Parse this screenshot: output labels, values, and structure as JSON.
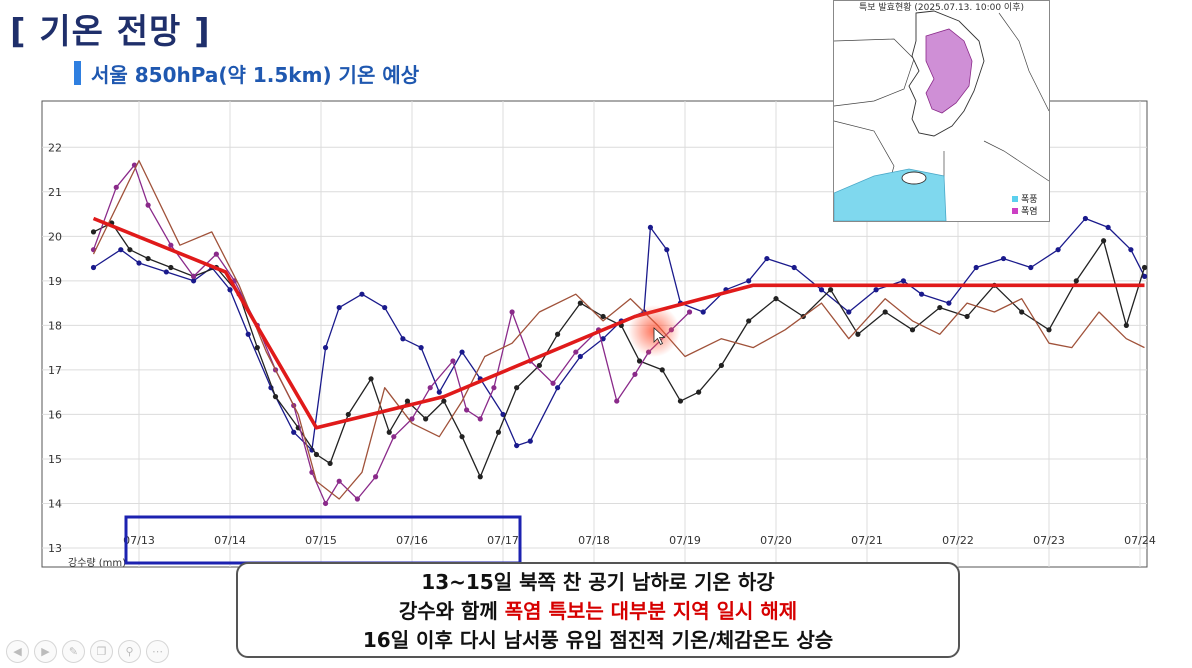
{
  "header": {
    "title": "[ 기온 전망 ]",
    "subtitle": "서울 850hPa(약 1.5km) 기온 예상"
  },
  "chart_data": {
    "type": "line",
    "xlabel": "",
    "ylabel": "",
    "ylim": [
      13,
      22.5
    ],
    "yticks": [
      13,
      14,
      15,
      16,
      17,
      18,
      19,
      20,
      21,
      22
    ],
    "x_range": [
      0,
      12
    ],
    "xtick_positions": [
      1,
      2,
      3,
      4,
      5,
      6,
      7,
      8,
      9,
      10,
      11,
      12
    ],
    "xtick_labels": [
      "07/13",
      "07/14",
      "07/15",
      "07/16",
      "07/17",
      "07/18",
      "07/19",
      "07/20",
      "07/21",
      "07/22",
      "07/23",
      "07/24"
    ],
    "bottom_label": "강수량 (mm)",
    "grid": true,
    "series": [
      {
        "name": "",
        "color": "#1a1a8c",
        "markers": true,
        "points": [
          [
            0.5,
            19.3
          ],
          [
            0.8,
            19.7
          ],
          [
            1.0,
            19.4
          ],
          [
            1.3,
            19.2
          ],
          [
            1.6,
            19.0
          ],
          [
            1.8,
            19.3
          ],
          [
            2.0,
            18.8
          ],
          [
            2.2,
            17.8
          ],
          [
            2.45,
            16.6
          ],
          [
            2.7,
            15.6
          ],
          [
            2.9,
            15.2
          ],
          [
            3.05,
            17.5
          ],
          [
            3.2,
            18.4
          ],
          [
            3.45,
            18.7
          ],
          [
            3.7,
            18.4
          ],
          [
            3.9,
            17.7
          ],
          [
            4.1,
            17.5
          ],
          [
            4.3,
            16.5
          ],
          [
            4.55,
            17.4
          ],
          [
            4.75,
            16.8
          ],
          [
            5.0,
            16.0
          ],
          [
            5.15,
            15.3
          ],
          [
            5.3,
            15.4
          ],
          [
            5.6,
            16.6
          ],
          [
            5.85,
            17.3
          ],
          [
            6.1,
            17.7
          ],
          [
            6.3,
            18.1
          ],
          [
            6.55,
            18.3
          ],
          [
            6.62,
            20.2
          ],
          [
            6.8,
            19.7
          ],
          [
            6.95,
            18.5
          ],
          [
            7.2,
            18.3
          ],
          [
            7.45,
            18.8
          ],
          [
            7.7,
            19.0
          ],
          [
            7.9,
            19.5
          ],
          [
            8.2,
            19.3
          ],
          [
            8.5,
            18.8
          ],
          [
            8.8,
            18.3
          ],
          [
            9.1,
            18.8
          ],
          [
            9.4,
            19.0
          ],
          [
            9.6,
            18.7
          ],
          [
            9.9,
            18.5
          ],
          [
            10.2,
            19.3
          ],
          [
            10.5,
            19.5
          ],
          [
            10.8,
            19.3
          ],
          [
            11.1,
            19.7
          ],
          [
            11.4,
            20.4
          ],
          [
            11.65,
            20.2
          ],
          [
            11.9,
            19.7
          ],
          [
            12.05,
            19.1
          ]
        ]
      },
      {
        "name": "",
        "color": "#222222",
        "markers": true,
        "points": [
          [
            0.5,
            20.1
          ],
          [
            0.7,
            20.3
          ],
          [
            0.9,
            19.7
          ],
          [
            1.1,
            19.5
          ],
          [
            1.35,
            19.3
          ],
          [
            1.6,
            19.1
          ],
          [
            1.85,
            19.3
          ],
          [
            2.1,
            18.7
          ],
          [
            2.3,
            17.5
          ],
          [
            2.5,
            16.4
          ],
          [
            2.75,
            15.7
          ],
          [
            2.95,
            15.1
          ],
          [
            3.1,
            14.9
          ],
          [
            3.3,
            16.0
          ],
          [
            3.55,
            16.8
          ],
          [
            3.75,
            15.6
          ],
          [
            3.95,
            16.3
          ],
          [
            4.15,
            15.9
          ],
          [
            4.35,
            16.3
          ],
          [
            4.55,
            15.5
          ],
          [
            4.75,
            14.6
          ],
          [
            4.95,
            15.6
          ],
          [
            5.15,
            16.6
          ],
          [
            5.4,
            17.1
          ],
          [
            5.6,
            17.8
          ],
          [
            5.85,
            18.5
          ],
          [
            6.1,
            18.2
          ],
          [
            6.3,
            18.0
          ],
          [
            6.5,
            17.2
          ],
          [
            6.75,
            17.0
          ],
          [
            6.95,
            16.3
          ],
          [
            7.15,
            16.5
          ],
          [
            7.4,
            17.1
          ],
          [
            7.7,
            18.1
          ],
          [
            8.0,
            18.6
          ],
          [
            8.3,
            18.2
          ],
          [
            8.6,
            18.8
          ],
          [
            8.9,
            17.8
          ],
          [
            9.2,
            18.3
          ],
          [
            9.5,
            17.9
          ],
          [
            9.8,
            18.4
          ],
          [
            10.1,
            18.2
          ],
          [
            10.4,
            18.9
          ],
          [
            10.7,
            18.3
          ],
          [
            11.0,
            17.9
          ],
          [
            11.3,
            19.0
          ],
          [
            11.6,
            19.9
          ],
          [
            11.85,
            18.0
          ],
          [
            12.05,
            19.3
          ]
        ]
      },
      {
        "name": "",
        "color": "#8a2a8a",
        "markers": true,
        "points": [
          [
            0.5,
            19.7
          ],
          [
            0.75,
            21.1
          ],
          [
            0.95,
            21.6
          ],
          [
            1.1,
            20.7
          ],
          [
            1.35,
            19.8
          ],
          [
            1.6,
            19.1
          ],
          [
            1.85,
            19.6
          ],
          [
            2.05,
            19.0
          ],
          [
            2.3,
            18.0
          ],
          [
            2.5,
            17.0
          ],
          [
            2.7,
            16.2
          ],
          [
            2.9,
            14.7
          ],
          [
            3.05,
            14.0
          ],
          [
            3.2,
            14.5
          ],
          [
            3.4,
            14.1
          ],
          [
            3.6,
            14.6
          ],
          [
            3.8,
            15.5
          ],
          [
            4.0,
            15.9
          ],
          [
            4.2,
            16.6
          ],
          [
            4.45,
            17.2
          ],
          [
            4.6,
            16.1
          ],
          [
            4.75,
            15.9
          ],
          [
            4.9,
            16.6
          ],
          [
            5.1,
            18.3
          ],
          [
            5.3,
            17.2
          ],
          [
            5.55,
            16.7
          ],
          [
            5.8,
            17.4
          ],
          [
            6.05,
            17.9
          ],
          [
            6.25,
            16.3
          ],
          [
            6.45,
            16.9
          ],
          [
            6.6,
            17.4
          ],
          [
            6.85,
            17.9
          ],
          [
            7.05,
            18.3
          ]
        ]
      },
      {
        "name": "",
        "color": "#a0523a",
        "markers": false,
        "points": [
          [
            0.5,
            19.6
          ],
          [
            1.0,
            21.7
          ],
          [
            1.45,
            19.8
          ],
          [
            1.8,
            20.1
          ],
          [
            2.1,
            18.9
          ],
          [
            2.4,
            17.4
          ],
          [
            2.75,
            16.0
          ],
          [
            2.95,
            14.5
          ],
          [
            3.2,
            14.1
          ],
          [
            3.45,
            14.7
          ],
          [
            3.7,
            16.6
          ],
          [
            4.0,
            15.8
          ],
          [
            4.3,
            15.5
          ],
          [
            4.55,
            16.3
          ],
          [
            4.8,
            17.3
          ],
          [
            5.1,
            17.6
          ],
          [
            5.4,
            18.3
          ],
          [
            5.8,
            18.7
          ],
          [
            6.1,
            18.1
          ],
          [
            6.4,
            18.6
          ],
          [
            6.7,
            18.0
          ],
          [
            7.0,
            17.3
          ],
          [
            7.4,
            17.7
          ],
          [
            7.75,
            17.5
          ],
          [
            8.1,
            17.9
          ],
          [
            8.5,
            18.5
          ],
          [
            8.8,
            17.7
          ],
          [
            9.2,
            18.6
          ],
          [
            9.5,
            18.1
          ],
          [
            9.8,
            17.8
          ],
          [
            10.1,
            18.5
          ],
          [
            10.4,
            18.3
          ],
          [
            10.7,
            18.6
          ],
          [
            11.0,
            17.6
          ],
          [
            11.25,
            17.5
          ],
          [
            11.55,
            18.3
          ],
          [
            11.85,
            17.7
          ],
          [
            12.05,
            17.5
          ]
        ]
      },
      {
        "name": "",
        "color": "#e01a1a",
        "markers": false,
        "bold": true,
        "points": [
          [
            0.5,
            20.4
          ],
          [
            1.95,
            19.2
          ],
          [
            2.95,
            15.7
          ],
          [
            4.35,
            16.4
          ],
          [
            6.45,
            18.2
          ],
          [
            7.75,
            18.9
          ],
          [
            12.05,
            18.9
          ]
        ]
      }
    ]
  },
  "inset_map": {
    "title": "특보 발효현황 (2025.07.13. 10:00 이후)",
    "legend": [
      {
        "label": "폭풍",
        "color": "#5bd0ee"
      },
      {
        "label": "폭염",
        "color": "#cc3fc4"
      }
    ]
  },
  "callout": {
    "line1": "13~15일 북쪽 찬 공기 남하로 기온 하강",
    "line2_prefix": "강수와 함께 ",
    "line2_highlight": "폭염 특보는 대부분 지역 일시 해제",
    "line3": "16일 이후 다시 남서풍 유입 점진적 기온/체감온도 상승"
  },
  "toolbar": {
    "icons": [
      "previous-icon",
      "next-icon",
      "pen-icon",
      "copy-icon",
      "zoom-icon",
      "more-icon"
    ]
  }
}
